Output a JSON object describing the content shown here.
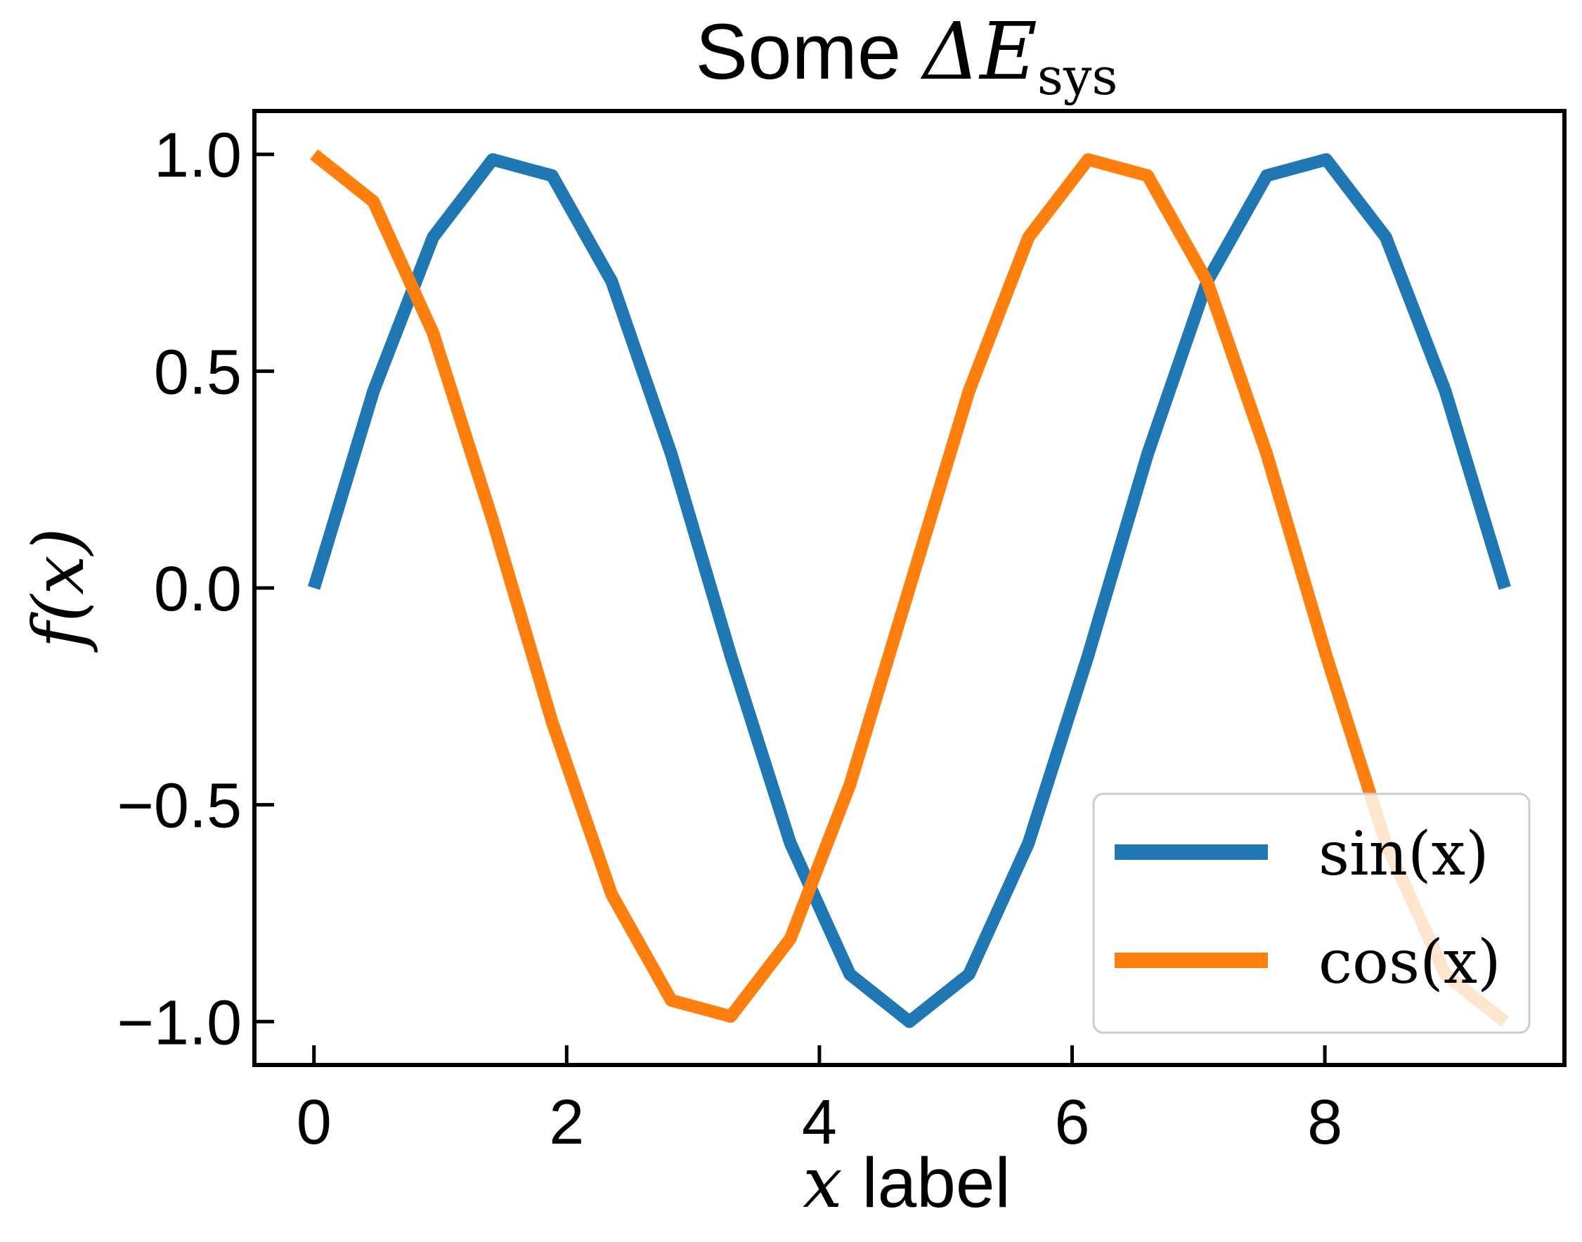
{
  "chart_data": {
    "type": "line",
    "title": {
      "prefix": "Some ",
      "math_symbol": "ΔE",
      "math_subscript": "sys"
    },
    "xlabel": {
      "math_var": "x",
      "text": " label"
    },
    "ylabel": "f(x)",
    "xlim": [
      -0.4712,
      9.896
    ],
    "ylim": [
      -1.1,
      1.1
    ],
    "x_ticks": [
      0,
      2,
      4,
      6,
      8
    ],
    "x_tick_labels": [
      "0",
      "2",
      "4",
      "6",
      "8"
    ],
    "y_ticks": [
      -1.0,
      -0.5,
      0.0,
      0.5,
      1.0
    ],
    "y_tick_labels": [
      "−1.0",
      "−0.5",
      "0.0",
      "0.5",
      "1.0"
    ],
    "grid": false,
    "legend_position": "bottom-right",
    "x": [
      0.0,
      0.4712,
      0.9425,
      1.4137,
      1.885,
      2.3562,
      2.8274,
      3.2987,
      3.7699,
      4.2412,
      4.7124,
      5.1836,
      5.6549,
      6.1261,
      6.5973,
      7.0686,
      7.5398,
      8.0111,
      8.4823,
      8.9535,
      9.4248
    ],
    "series": [
      {
        "name": "sin(x)",
        "color": "#1f77b4",
        "values": [
          0.0,
          0.454,
          0.809,
          0.988,
          0.951,
          0.707,
          0.309,
          -0.156,
          -0.588,
          -0.891,
          -1.0,
          -0.891,
          -0.588,
          -0.156,
          0.309,
          0.707,
          0.951,
          0.988,
          0.809,
          0.454,
          0.0
        ]
      },
      {
        "name": "cos(x)",
        "color": "#ff7f0e",
        "values": [
          1.0,
          0.891,
          0.588,
          0.156,
          -0.309,
          -0.707,
          -0.951,
          -0.988,
          -0.809,
          -0.454,
          0.0,
          0.454,
          0.809,
          0.988,
          0.951,
          0.707,
          0.309,
          -0.156,
          -0.588,
          -0.891,
          -1.0
        ]
      }
    ]
  }
}
